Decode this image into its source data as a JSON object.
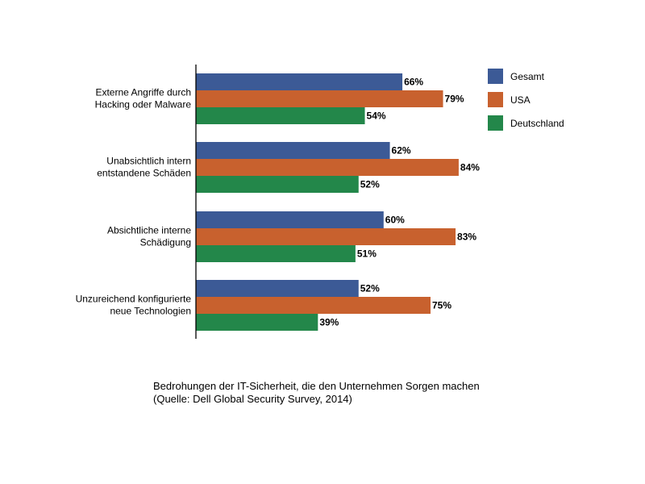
{
  "chart_data": {
    "type": "bar",
    "orientation": "horizontal",
    "categories": [
      [
        "Externe Angriffe durch",
        "Hacking oder Malware"
      ],
      [
        "Unabsichtlich intern",
        "entstandene Schäden"
      ],
      [
        "Absichtliche interne",
        "Schädigung"
      ],
      [
        "Unzureichend konfigurierte",
        "neue Technologien"
      ]
    ],
    "series": [
      {
        "name": "Gesamt",
        "color": "#3c5a96",
        "values": [
          66,
          62,
          60,
          52
        ],
        "labels": [
          "66%",
          "62%",
          "60%",
          "52%"
        ]
      },
      {
        "name": "USA",
        "color": "#c8612e",
        "values": [
          79,
          84,
          83,
          75
        ],
        "labels": [
          "79%",
          "84%",
          "83%",
          "75%"
        ]
      },
      {
        "name": "Deutschland",
        "color": "#23874a",
        "values": [
          54,
          52,
          51,
          39
        ],
        "labels": [
          "54%",
          "52%",
          "51%",
          "39%"
        ]
      }
    ],
    "xlim": [
      0,
      100
    ],
    "grid": false,
    "legend_position": "right"
  },
  "caption": {
    "line1": "Bedrohungen der IT-Sicherheit, die den Unternehmen Sorgen machen",
    "line2": "(Quelle: Dell Global Security Survey, 2014)"
  }
}
